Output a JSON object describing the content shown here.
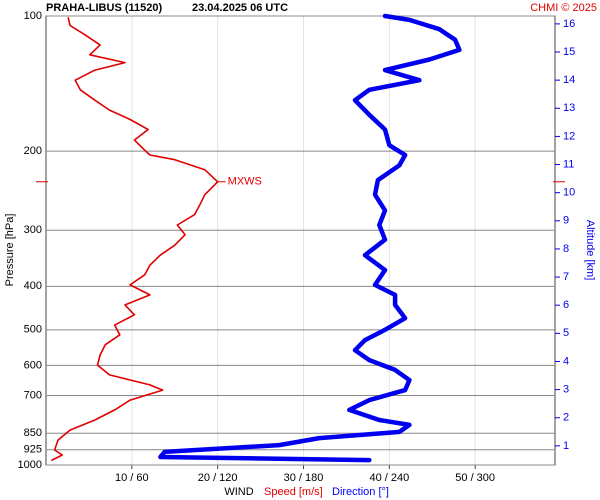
{
  "chart_data": {
    "type": "profile",
    "title": "PRAHA-LIBUS (11520)",
    "subtitle": "23.04.2025 06 UTC",
    "credit": "CHMI © 2025",
    "xlabel": "WIND",
    "ylabel": "Pressure [hPa]",
    "y2label": "Altitude [km]",
    "xlim": [
      0,
      59.3
    ],
    "x2lim": [
      0,
      355.8
    ],
    "xticks": [
      {
        "value": 10,
        "label": "10 / 60"
      },
      {
        "value": 20,
        "label": "20 / 120"
      },
      {
        "value": 30,
        "label": "30 / 180"
      },
      {
        "value": 40,
        "label": "40 / 240"
      },
      {
        "value": 50,
        "label": "50 / 300"
      }
    ],
    "ylim": [
      1000,
      100
    ],
    "yticks": [
      100,
      200,
      300,
      400,
      500,
      600,
      700,
      850,
      925,
      1000
    ],
    "ylog": true,
    "y2lim": [
      0.32,
      16.28
    ],
    "y2ticks": [
      1,
      2,
      3,
      4,
      5,
      6,
      7,
      8,
      9,
      10,
      11,
      12,
      13,
      14,
      15,
      16
    ],
    "grid": true,
    "series": [
      {
        "name": "Speed [m/s]",
        "color": "#e00000",
        "axis": "x",
        "pressure": [
          975,
          950,
          926,
          880,
          836,
          794,
          754,
          717,
          681,
          663,
          630,
          599,
          569,
          540,
          513,
          488,
          463,
          440,
          418,
          397,
          377,
          359,
          341,
          324,
          307,
          292,
          277,
          264,
          250,
          234,
          220,
          209,
          204,
          199,
          189,
          179,
          170,
          162,
          154,
          146,
          139,
          132,
          127,
          122,
          116,
          110,
          105,
          101
        ],
        "values": [
          0.7,
          1.9,
          1,
          1.4,
          2.8,
          5.7,
          8,
          9.8,
          13.6,
          12.1,
          7.4,
          6,
          6.3,
          6.9,
          8.6,
          8,
          10.3,
          9.2,
          12.1,
          9.8,
          11.5,
          12.1,
          13.3,
          15,
          16.2,
          15.3,
          17.3,
          17.9,
          18.5,
          20,
          18.5,
          15,
          12.1,
          11.5,
          10.3,
          11.9,
          9.8,
          7.4,
          5.7,
          4,
          3.4,
          5.7,
          9.2,
          5.1,
          6.3,
          4.5,
          2.8,
          2.6
        ]
      },
      {
        "name": "Direction [°]",
        "color": "#0000ee",
        "axis": "x2",
        "pressure": [
          975,
          960,
          935,
          903,
          871,
          844,
          814,
          794,
          754,
          717,
          681,
          647,
          614,
          584,
          555,
          527,
          500,
          471,
          440,
          418,
          397,
          368,
          341,
          315,
          292,
          271,
          250,
          232,
          215,
          204,
          194,
          179,
          166,
          154,
          146,
          139,
          132,
          125,
          119,
          113,
          107,
          102,
          100
        ],
        "values": [
          226,
          80,
          83,
          163,
          191,
          247,
          254,
          233,
          212,
          226,
          251,
          254,
          244,
          226,
          216,
          223,
          237,
          251,
          244,
          244,
          230,
          237,
          223,
          237,
          233,
          237,
          230,
          232,
          247,
          251,
          240,
          237,
          226,
          216,
          226,
          261,
          237,
          268,
          289,
          286,
          275,
          254,
          237
        ]
      }
    ],
    "annotations": [
      {
        "text": "MXWS",
        "pressure": 234,
        "value": 20
      }
    ]
  }
}
